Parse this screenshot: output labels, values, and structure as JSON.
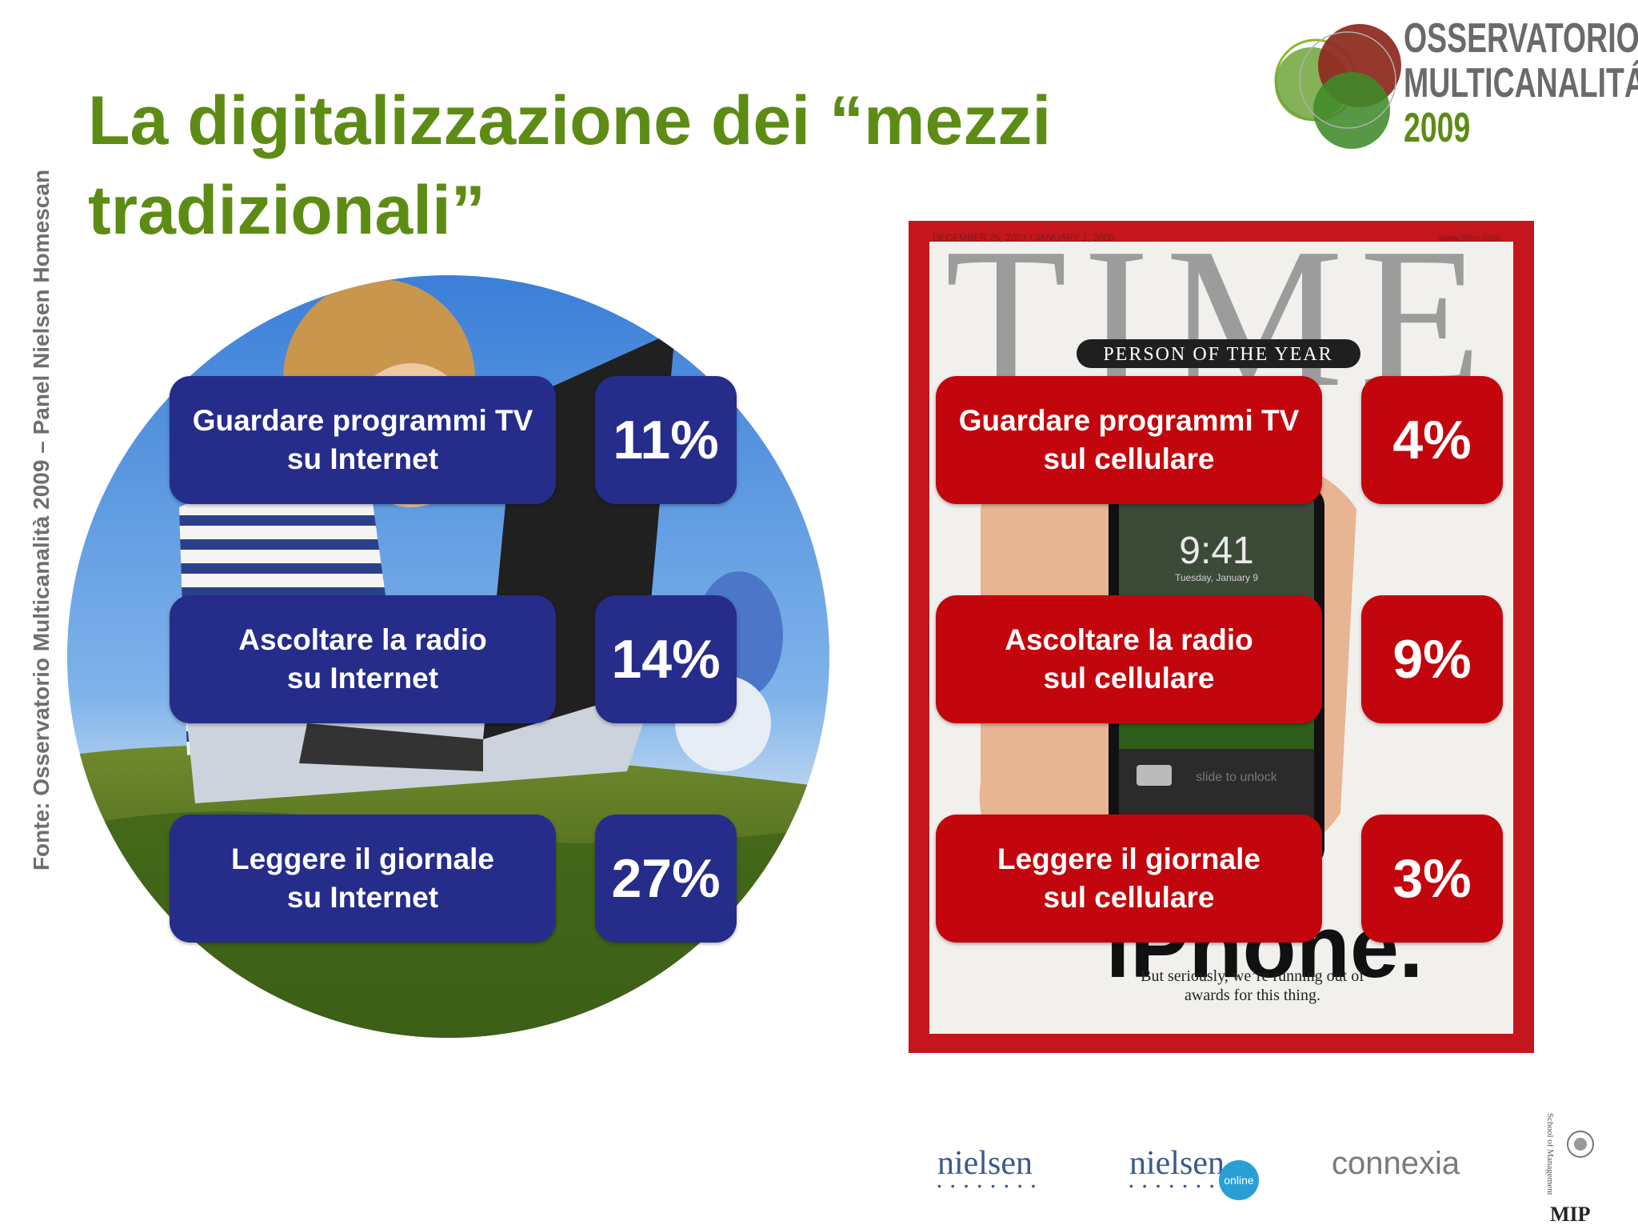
{
  "title": "La digitalizzazione dei “mezzi tradizionali”",
  "source": "Fonte: Osservatorio Multicanalità 2009 – Panel Nielsen Homescan",
  "logo": {
    "line1": "OSSERVATORIO",
    "line2": "MULTICANALITÁ",
    "line3": "2009"
  },
  "internet": [
    {
      "label": "Guardare programmi TV\nsu Internet",
      "value": "11%"
    },
    {
      "label": "Ascoltare la radio\nsu Internet",
      "value": "14%"
    },
    {
      "label": "Leggere il giornale\nsu Internet",
      "value": "27%"
    }
  ],
  "mobile": [
    {
      "label": "Guardare programmi TV\nsul cellulare",
      "value": "4%"
    },
    {
      "label": "Ascoltare la radio\nsul cellulare",
      "value": "9%"
    },
    {
      "label": "Leggere il giornale\nsul cellulare",
      "value": "3%"
    }
  ],
  "time_cover": {
    "date": "DECEMBER 25, 2007 / JANUARY 1, 2008",
    "site": "www.time.com",
    "masthead": "TIME",
    "banner": "PERSON OF THE YEAR",
    "clock": "9:41",
    "clock_sub": "Tuesday, January 9",
    "unlock": "slide to unlock",
    "headline": "iPhone.",
    "tagline_1": "But seriously, we’re running out of",
    "tagline_2": "awards for this thing."
  },
  "partners": {
    "nielsen": "nielsen",
    "nielsen_online": "nielsen",
    "online_badge": "online",
    "connexia": "connexia",
    "mip": "MIP",
    "school_vertical": "School of Management"
  },
  "colors": {
    "title_green": "#5d8c14",
    "pill_blue": "#262c8a",
    "pill_red": "#c3060d",
    "cover_red": "#c4161c"
  }
}
